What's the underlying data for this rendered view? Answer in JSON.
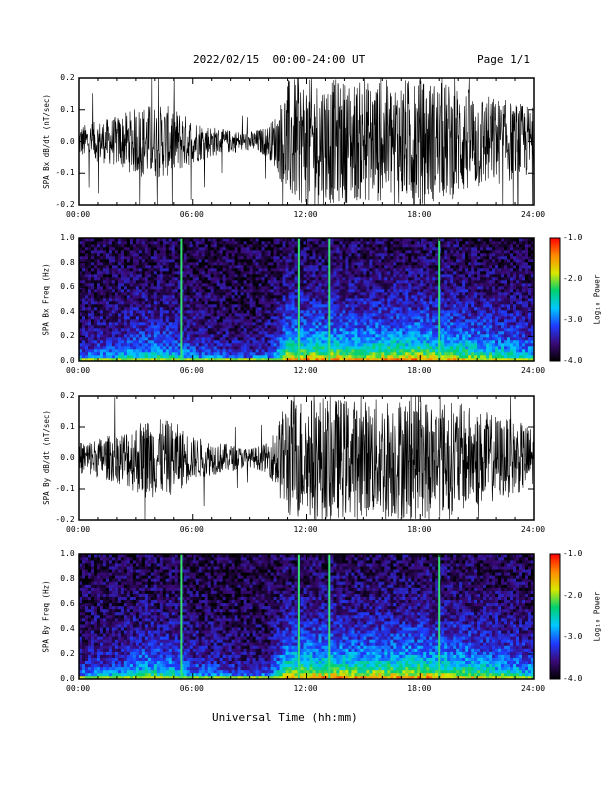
{
  "header": {
    "title": "2022/02/15  00:00-24:00 UT",
    "page": "Page 1/1"
  },
  "xlabel": "Universal Time (hh:mm)",
  "colors": {
    "trace": "#000000",
    "colormap": [
      "#000000",
      "#3a0a78",
      "#1e3cff",
      "#00c8ff",
      "#00d070",
      "#d8e800",
      "#ff8a00",
      "#ff0000"
    ]
  },
  "chart_data": [
    {
      "type": "line",
      "ylabel": "SPA Bx dB/dt (nT/sec)",
      "x_ticks": [
        "00:00",
        "06:00",
        "12:00",
        "18:00",
        "24:00"
      ],
      "xlim": [
        0,
        24
      ],
      "ylim": [
        -0.2,
        0.2
      ],
      "y_ticks": [
        "0.2",
        "0.1",
        "0.0",
        "-0.1",
        "-0.2"
      ],
      "activity_envelope": {
        "hours": [
          0,
          2,
          3.5,
          5,
          6,
          7.5,
          9,
          10,
          10.5,
          11,
          12,
          13,
          15,
          17,
          18,
          20,
          22,
          24
        ],
        "amplitude": [
          0.05,
          0.08,
          0.12,
          0.11,
          0.07,
          0.04,
          0.03,
          0.05,
          0.1,
          0.2,
          0.2,
          0.2,
          0.19,
          0.2,
          0.2,
          0.18,
          0.14,
          0.11
        ]
      }
    },
    {
      "type": "heatmap",
      "ylabel": "SPA Bx Freq (Hz)",
      "x_ticks": [
        "00:00",
        "06:00",
        "12:00",
        "18:00",
        "24:00"
      ],
      "xlim": [
        0,
        24
      ],
      "ylim": [
        0.0,
        1.0
      ],
      "y_ticks": [
        "1.0",
        "0.8",
        "0.6",
        "0.4",
        "0.2",
        "0.0"
      ],
      "colorbar": {
        "label": "Log₁₀ Power",
        "ticks": [
          "-1.0",
          "-2.0",
          "-3.0",
          "-4.0"
        ],
        "range": [
          -4.0,
          -1.0
        ]
      },
      "bright_lines_hours": [
        5.4,
        11.6,
        13.2,
        19.0
      ]
    },
    {
      "type": "line",
      "ylabel": "SPA By dB/dt (nT/sec)",
      "x_ticks": [
        "00:00",
        "06:00",
        "12:00",
        "18:00",
        "24:00"
      ],
      "xlim": [
        0,
        24
      ],
      "ylim": [
        -0.2,
        0.2
      ],
      "y_ticks": [
        "0.2",
        "0.1",
        "0.0",
        "-0.1",
        "-0.2"
      ],
      "activity_envelope": {
        "hours": [
          0,
          2,
          3.5,
          5,
          6,
          7.5,
          9,
          10,
          10.5,
          11,
          12,
          13,
          15,
          17,
          18,
          20,
          22,
          24
        ],
        "amplitude": [
          0.05,
          0.08,
          0.13,
          0.12,
          0.07,
          0.05,
          0.03,
          0.05,
          0.12,
          0.2,
          0.2,
          0.2,
          0.19,
          0.2,
          0.2,
          0.18,
          0.14,
          0.1
        ]
      }
    },
    {
      "type": "heatmap",
      "ylabel": "SPA By Freq (Hz)",
      "x_ticks": [
        "00:00",
        "06:00",
        "12:00",
        "18:00",
        "24:00"
      ],
      "xlim": [
        0,
        24
      ],
      "ylim": [
        0.0,
        1.0
      ],
      "y_ticks": [
        "1.0",
        "0.8",
        "0.6",
        "0.4",
        "0.2",
        "0.0"
      ],
      "colorbar": {
        "label": "Log₁₀ Power",
        "ticks": [
          "-1.0",
          "-2.0",
          "-3.0",
          "-4.0"
        ],
        "range": [
          -4.0,
          -1.0
        ]
      },
      "bright_lines_hours": [
        5.4,
        11.6,
        13.2,
        19.0
      ]
    }
  ]
}
